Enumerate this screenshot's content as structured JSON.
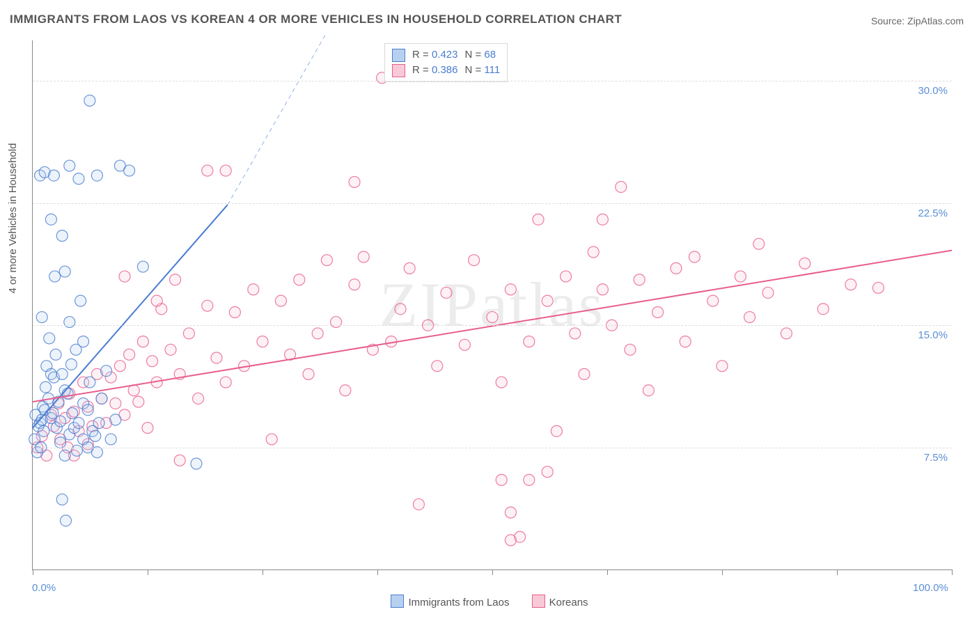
{
  "title": "IMMIGRANTS FROM LAOS VS KOREAN 4 OR MORE VEHICLES IN HOUSEHOLD CORRELATION CHART",
  "source_label": "Source: ",
  "source_value": "ZipAtlas.com",
  "watermark": "ZIPatlas",
  "chart": {
    "type": "scatter",
    "background_color": "#ffffff",
    "grid_color": "#dddddd",
    "grid_dash": "5,5",
    "axis_color": "#888888",
    "ylabel": "4 or more Vehicles in Household",
    "ylabel_fontsize": 15,
    "xlim": [
      0,
      100
    ],
    "ylim": [
      0,
      32.5
    ],
    "xtick_positions": [
      0,
      12.5,
      25,
      37.5,
      50,
      62.5,
      75,
      87.5,
      100
    ],
    "x_axis_labels": [
      {
        "pos": 0,
        "text": "0.0%"
      },
      {
        "pos": 100,
        "text": "100.0%"
      }
    ],
    "y_gridlines": [
      7.5,
      15.0,
      22.5,
      30.0
    ],
    "y_axis_labels": [
      {
        "pos": 7.5,
        "text": "7.5%"
      },
      {
        "pos": 15.0,
        "text": "15.0%"
      },
      {
        "pos": 22.5,
        "text": "22.5%"
      },
      {
        "pos": 30.0,
        "text": "30.0%"
      }
    ],
    "tick_label_color": "#5b8fd6",
    "tick_label_fontsize": 15,
    "marker_radius": 8,
    "marker_stroke_width": 1.2,
    "marker_fill_opacity": 0.25,
    "series": [
      {
        "name": "Immigrants from Laos",
        "stroke": "#4a7dd0",
        "fill": "#b8d0f0",
        "R": "0.423",
        "N": "68",
        "regression": {
          "x1": 0,
          "y1": 8.7,
          "x2": 21.2,
          "y2": 22.4,
          "dash_x2": 32,
          "dash_y2": 33,
          "width": 2
        },
        "points": [
          [
            0.2,
            8.0
          ],
          [
            0.3,
            9.5
          ],
          [
            0.5,
            7.2
          ],
          [
            0.6,
            8.8
          ],
          [
            0.8,
            9.0
          ],
          [
            0.9,
            7.5
          ],
          [
            1.0,
            9.2
          ],
          [
            1.1,
            10.0
          ],
          [
            1.2,
            8.5
          ],
          [
            1.3,
            9.8
          ],
          [
            1.4,
            11.2
          ],
          [
            1.5,
            12.5
          ],
          [
            1.7,
            10.5
          ],
          [
            1.8,
            14.2
          ],
          [
            2.0,
            12.0
          ],
          [
            2.0,
            9.3
          ],
          [
            2.2,
            9.6
          ],
          [
            2.3,
            11.8
          ],
          [
            2.5,
            13.2
          ],
          [
            2.6,
            8.7
          ],
          [
            2.8,
            10.3
          ],
          [
            3.0,
            9.1
          ],
          [
            3.0,
            7.8
          ],
          [
            3.2,
            12.0
          ],
          [
            3.5,
            11.0
          ],
          [
            3.5,
            7.0
          ],
          [
            3.8,
            10.8
          ],
          [
            4.0,
            8.3
          ],
          [
            4.0,
            15.2
          ],
          [
            4.3,
            9.6
          ],
          [
            4.5,
            8.7
          ],
          [
            4.7,
            13.5
          ],
          [
            4.8,
            7.3
          ],
          [
            5.0,
            9.0
          ],
          [
            5.2,
            16.5
          ],
          [
            5.5,
            8.0
          ],
          [
            5.5,
            10.2
          ],
          [
            6.0,
            9.8
          ],
          [
            6.2,
            11.5
          ],
          [
            6.5,
            8.5
          ],
          [
            7.0,
            7.2
          ],
          [
            7.2,
            9.0
          ],
          [
            7.5,
            10.5
          ],
          [
            8.0,
            12.2
          ],
          [
            8.5,
            8.0
          ],
          [
            9.0,
            9.2
          ],
          [
            9.5,
            24.8
          ],
          [
            2.4,
            18.0
          ],
          [
            3.2,
            20.5
          ],
          [
            0.8,
            24.2
          ],
          [
            1.3,
            24.4
          ],
          [
            4.0,
            24.8
          ],
          [
            5.0,
            24.0
          ],
          [
            10.5,
            24.5
          ],
          [
            12.0,
            18.6
          ],
          [
            3.6,
            3.0
          ],
          [
            3.2,
            4.3
          ],
          [
            17.8,
            6.5
          ],
          [
            6.2,
            28.8
          ],
          [
            2.0,
            21.5
          ],
          [
            2.3,
            24.2
          ],
          [
            7.0,
            24.2
          ],
          [
            1.0,
            15.5
          ],
          [
            3.5,
            18.3
          ],
          [
            4.2,
            12.6
          ],
          [
            5.5,
            14.0
          ],
          [
            6.0,
            7.5
          ],
          [
            6.8,
            8.2
          ]
        ]
      },
      {
        "name": "Koreans",
        "stroke": "#e85d8c",
        "fill": "#f9c9d7",
        "R": "0.386",
        "N": "111",
        "regression": {
          "x1": 0,
          "y1": 10.3,
          "x2": 100,
          "y2": 19.6,
          "width": 2
        },
        "points": [
          [
            0.5,
            7.5
          ],
          [
            1.0,
            8.2
          ],
          [
            1.5,
            7.0
          ],
          [
            2.0,
            9.5
          ],
          [
            2.3,
            8.8
          ],
          [
            2.8,
            10.2
          ],
          [
            3.0,
            8.0
          ],
          [
            3.5,
            9.3
          ],
          [
            3.8,
            7.5
          ],
          [
            4.0,
            10.8
          ],
          [
            4.5,
            9.7
          ],
          [
            5.0,
            8.5
          ],
          [
            5.5,
            11.5
          ],
          [
            6.0,
            10.0
          ],
          [
            6.5,
            8.8
          ],
          [
            7.0,
            12.0
          ],
          [
            7.5,
            10.5
          ],
          [
            8.0,
            9.0
          ],
          [
            8.5,
            11.8
          ],
          [
            9.0,
            10.2
          ],
          [
            9.5,
            12.5
          ],
          [
            10.0,
            9.5
          ],
          [
            10.5,
            13.2
          ],
          [
            11.0,
            11.0
          ],
          [
            11.5,
            10.3
          ],
          [
            12.0,
            14.0
          ],
          [
            12.5,
            8.7
          ],
          [
            13.0,
            12.8
          ],
          [
            13.5,
            11.5
          ],
          [
            14.0,
            16.0
          ],
          [
            15.0,
            13.5
          ],
          [
            15.5,
            17.8
          ],
          [
            16.0,
            12.0
          ],
          [
            17.0,
            14.5
          ],
          [
            18.0,
            10.5
          ],
          [
            19.0,
            16.2
          ],
          [
            20.0,
            13.0
          ],
          [
            21.0,
            11.5
          ],
          [
            22.0,
            15.8
          ],
          [
            23.0,
            12.5
          ],
          [
            24.0,
            17.2
          ],
          [
            25.0,
            14.0
          ],
          [
            26.0,
            8.0
          ],
          [
            27.0,
            16.5
          ],
          [
            28.0,
            13.2
          ],
          [
            29.0,
            17.8
          ],
          [
            30.0,
            12.0
          ],
          [
            31.0,
            14.5
          ],
          [
            32.0,
            19.0
          ],
          [
            33.0,
            15.2
          ],
          [
            34.0,
            11.0
          ],
          [
            35.0,
            17.5
          ],
          [
            36.0,
            19.2
          ],
          [
            35.0,
            23.8
          ],
          [
            37.0,
            13.5
          ],
          [
            38.0,
            30.2
          ],
          [
            39.0,
            14.0
          ],
          [
            40.0,
            16.0
          ],
          [
            41.0,
            18.5
          ],
          [
            42.0,
            4.0
          ],
          [
            43.0,
            15.0
          ],
          [
            44.0,
            12.5
          ],
          [
            45.0,
            17.0
          ],
          [
            47.0,
            13.8
          ],
          [
            48.0,
            19.0
          ],
          [
            50.0,
            15.5
          ],
          [
            51.0,
            11.5
          ],
          [
            51.0,
            5.5
          ],
          [
            52.0,
            17.2
          ],
          [
            53.0,
            2.0
          ],
          [
            54.0,
            14.0
          ],
          [
            55.0,
            21.5
          ],
          [
            52.0,
            3.5
          ],
          [
            56.0,
            16.5
          ],
          [
            57.0,
            8.5
          ],
          [
            58.0,
            18.0
          ],
          [
            59.0,
            14.5
          ],
          [
            60.0,
            12.0
          ],
          [
            61.0,
            19.5
          ],
          [
            62.0,
            17.2
          ],
          [
            63.0,
            15.0
          ],
          [
            62.0,
            21.5
          ],
          [
            64.0,
            23.5
          ],
          [
            65.0,
            13.5
          ],
          [
            66.0,
            17.8
          ],
          [
            67.0,
            11.0
          ],
          [
            68.0,
            15.8
          ],
          [
            70.0,
            18.5
          ],
          [
            71.0,
            14.0
          ],
          [
            72.0,
            19.2
          ],
          [
            74.0,
            16.5
          ],
          [
            75.0,
            12.5
          ],
          [
            77.0,
            18.0
          ],
          [
            78.0,
            15.5
          ],
          [
            79.0,
            20.0
          ],
          [
            80.0,
            17.0
          ],
          [
            82.0,
            14.5
          ],
          [
            84.0,
            18.8
          ],
          [
            86.0,
            16.0
          ],
          [
            89.0,
            17.5
          ],
          [
            92.0,
            17.3
          ],
          [
            21.0,
            24.5
          ],
          [
            10.0,
            18.0
          ],
          [
            13.5,
            16.5
          ],
          [
            4.5,
            7.0
          ],
          [
            6.0,
            7.7
          ],
          [
            56.0,
            6.0
          ],
          [
            52.0,
            1.8
          ],
          [
            54.0,
            5.5
          ],
          [
            16.0,
            6.7
          ],
          [
            19.0,
            24.5
          ]
        ]
      }
    ],
    "legend_top": {
      "border_color": "#d9d9d9",
      "background": "#ffffff",
      "R_label": "R =",
      "N_label": "N ="
    },
    "legend_bottom": {
      "items": [
        "Immigrants from Laos",
        "Koreans"
      ]
    }
  }
}
